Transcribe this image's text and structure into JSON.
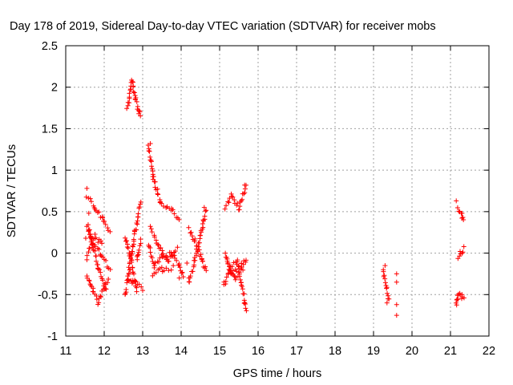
{
  "chart_data": {
    "type": "scatter",
    "title": "Day 178 of 2019, Sidereal Day-to-day VTEC variation (SDTVAR) for receiver mobs",
    "xlabel": "GPS time / hours",
    "ylabel": "SDTVAR / TECUs",
    "xlim": [
      11,
      22
    ],
    "ylim": [
      -1,
      2.5
    ],
    "xticks": [
      "11",
      "12",
      "13",
      "14",
      "15",
      "16",
      "17",
      "18",
      "19",
      "20",
      "21",
      "22"
    ],
    "yticks": [
      "-1",
      "-0.5",
      "0",
      "0.5",
      "1",
      "1.5",
      "2",
      "2.5"
    ],
    "grid": true,
    "marker": "+",
    "color": "#ff0000",
    "series": [
      {
        "name": "SDTVAR",
        "segments": [
          [
            11.55,
            0.68,
            11.75,
            0.55
          ],
          [
            11.75,
            0.55,
            11.95,
            0.42
          ],
          [
            11.95,
            0.42,
            12.15,
            0.25
          ],
          [
            11.55,
            0.35,
            11.7,
            0.1
          ],
          [
            11.7,
            0.1,
            11.9,
            0.0
          ],
          [
            11.9,
            0.0,
            12.15,
            -0.2
          ],
          [
            11.55,
            -0.25,
            11.7,
            -0.45
          ],
          [
            11.7,
            -0.45,
            11.85,
            -0.6
          ],
          [
            11.85,
            -0.6,
            12.1,
            -0.3
          ],
          [
            11.55,
            0.0,
            11.75,
            0.2
          ],
          [
            11.75,
            0.2,
            11.95,
            0.1
          ],
          [
            11.6,
            0.3,
            11.85,
            -0.2
          ],
          [
            11.85,
            -0.2,
            12.05,
            -0.45
          ],
          [
            12.6,
            1.75,
            12.72,
            2.08
          ],
          [
            12.72,
            2.08,
            12.82,
            1.85
          ],
          [
            12.82,
            1.85,
            12.95,
            1.65
          ],
          [
            12.55,
            -0.5,
            12.65,
            -0.2
          ],
          [
            12.65,
            -0.2,
            12.8,
            0.25
          ],
          [
            12.8,
            0.25,
            12.95,
            0.6
          ],
          [
            12.55,
            0.2,
            12.7,
            -0.1
          ],
          [
            12.7,
            -0.1,
            12.85,
            -0.45
          ],
          [
            12.6,
            -0.3,
            12.75,
            -0.35
          ],
          [
            12.75,
            -0.35,
            12.95,
            -0.4
          ],
          [
            12.85,
            -0.1,
            12.95,
            0.15
          ],
          [
            13.15,
            1.3,
            13.28,
            0.9
          ],
          [
            13.28,
            0.9,
            13.45,
            0.62
          ],
          [
            13.45,
            0.62,
            13.75,
            0.52
          ],
          [
            13.75,
            0.52,
            13.95,
            0.4
          ],
          [
            13.15,
            0.1,
            13.3,
            -0.15
          ],
          [
            13.3,
            -0.15,
            13.5,
            -0.05
          ],
          [
            13.5,
            -0.05,
            13.75,
            0.0
          ],
          [
            13.75,
            0.0,
            13.95,
            -0.15
          ],
          [
            13.95,
            -0.15,
            14.05,
            -0.28
          ],
          [
            13.2,
            0.3,
            13.4,
            0.1
          ],
          [
            13.4,
            0.1,
            13.65,
            -0.1
          ],
          [
            13.65,
            -0.1,
            13.9,
            0.05
          ],
          [
            13.25,
            -0.25,
            13.5,
            -0.2
          ],
          [
            13.5,
            -0.2,
            13.8,
            -0.18
          ],
          [
            14.2,
            -0.35,
            14.35,
            -0.1
          ],
          [
            14.35,
            -0.1,
            14.5,
            0.2
          ],
          [
            14.5,
            0.2,
            14.65,
            0.52
          ],
          [
            14.2,
            0.3,
            14.35,
            0.15
          ],
          [
            14.35,
            0.15,
            14.55,
            -0.1
          ],
          [
            14.55,
            -0.1,
            14.65,
            -0.2
          ],
          [
            15.1,
            -0.4,
            15.25,
            -0.2
          ],
          [
            15.25,
            -0.2,
            15.45,
            -0.1
          ],
          [
            15.45,
            -0.1,
            15.7,
            -0.7
          ],
          [
            15.15,
            0.55,
            15.3,
            0.7
          ],
          [
            15.3,
            0.7,
            15.5,
            0.55
          ],
          [
            15.5,
            0.55,
            15.7,
            0.8
          ],
          [
            15.15,
            0.0,
            15.3,
            -0.25
          ],
          [
            15.3,
            -0.25,
            15.55,
            -0.15
          ],
          [
            15.55,
            -0.15,
            15.7,
            -0.1
          ],
          [
            15.2,
            -0.1,
            15.4,
            -0.3
          ],
          [
            15.4,
            -0.3,
            15.6,
            -0.2
          ],
          [
            19.25,
            -0.2,
            19.4,
            -0.55
          ],
          [
            21.2,
            0.55,
            21.35,
            0.38
          ],
          [
            21.2,
            -0.05,
            21.35,
            0.05
          ],
          [
            21.15,
            -0.65,
            21.2,
            -0.5
          ],
          [
            21.2,
            -0.5,
            21.35,
            -0.55
          ]
        ],
        "isolated": [
          [
            11.55,
            0.78
          ],
          [
            11.52,
            0.18
          ],
          [
            11.55,
            -0.08
          ],
          [
            11.6,
            0.48
          ],
          [
            12.9,
            1.68
          ],
          [
            13.2,
            1.32
          ],
          [
            13.0,
            -0.45
          ],
          [
            13.95,
            -0.3
          ],
          [
            14.15,
            -0.12
          ],
          [
            14.2,
            -0.3
          ],
          [
            14.6,
            0.55
          ],
          [
            15.65,
            0.82
          ],
          [
            19.3,
            -0.15
          ],
          [
            19.35,
            -0.6
          ],
          [
            19.6,
            -0.25
          ],
          [
            19.6,
            -0.35
          ],
          [
            19.6,
            -0.62
          ],
          [
            19.6,
            -0.75
          ],
          [
            21.15,
            0.63
          ],
          [
            21.3,
            0.48
          ],
          [
            21.25,
            0.02
          ],
          [
            21.3,
            -0.5
          ]
        ]
      }
    ]
  }
}
